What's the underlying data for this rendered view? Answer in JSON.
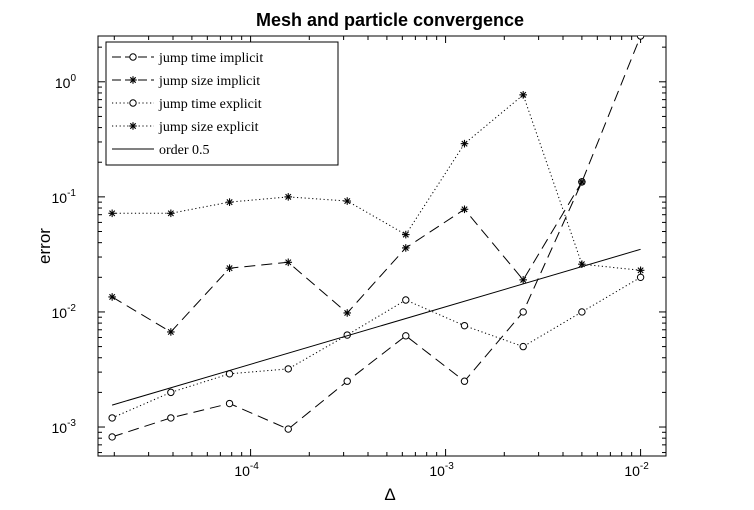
{
  "chart_data": {
    "type": "line",
    "title": "Mesh and particle convergence",
    "xlabel": "Δ",
    "ylabel": "error",
    "xscale": "log",
    "yscale": "log",
    "xlim": [
      1.65e-05,
      0.0135
    ],
    "ylim": [
      0.00056,
      2.5
    ],
    "x_ticks": [
      {
        "value": 0.0001,
        "base": "10",
        "exp": "-4"
      },
      {
        "value": 0.001,
        "base": "10",
        "exp": "-3"
      },
      {
        "value": 0.01,
        "base": "10",
        "exp": "-2"
      }
    ],
    "y_ticks": [
      {
        "value": 0.001,
        "base": "10",
        "exp": "-3"
      },
      {
        "value": 0.01,
        "base": "10",
        "exp": "-2"
      },
      {
        "value": 0.1,
        "base": "10",
        "exp": "-1"
      },
      {
        "value": 1,
        "base": "10",
        "exp": "0"
      }
    ],
    "legend_position": "top-left",
    "series": [
      {
        "name": "jump time implicit",
        "line": "dashed",
        "marker": "circle",
        "x": [
          1.95e-05,
          3.9e-05,
          7.8e-05,
          0.000156,
          0.000313,
          0.000625,
          0.00125,
          0.0025,
          0.005,
          0.01
        ],
        "y": [
          0.00082,
          0.0012,
          0.0016,
          0.00096,
          0.0025,
          0.0062,
          0.0025,
          0.01,
          0.135,
          2.5
        ]
      },
      {
        "name": "jump size implicit",
        "line": "dashed",
        "marker": "star",
        "x": [
          1.95e-05,
          3.9e-05,
          7.8e-05,
          0.000156,
          0.000313,
          0.000625,
          0.00125,
          0.0025,
          0.005
        ],
        "y": [
          0.0135,
          0.0067,
          0.024,
          0.027,
          0.0098,
          0.036,
          0.078,
          0.019,
          0.135
        ]
      },
      {
        "name": "jump time explicit",
        "line": "dotted",
        "marker": "circle",
        "x": [
          1.95e-05,
          3.9e-05,
          7.8e-05,
          0.000156,
          0.000313,
          0.000625,
          0.00125,
          0.0025,
          0.005,
          0.01
        ],
        "y": [
          0.0012,
          0.002,
          0.0029,
          0.0032,
          0.0063,
          0.0127,
          0.0076,
          0.005,
          0.01,
          0.02
        ]
      },
      {
        "name": "jump size explicit",
        "line": "dotted",
        "marker": "star",
        "x": [
          1.95e-05,
          3.9e-05,
          7.8e-05,
          0.000156,
          0.000313,
          0.000625,
          0.00125,
          0.0025,
          0.005,
          0.01
        ],
        "y": [
          0.072,
          0.072,
          0.09,
          0.1,
          0.092,
          0.047,
          0.29,
          0.77,
          0.026,
          0.023
        ]
      },
      {
        "name": "order 0.5",
        "line": "solid",
        "marker": "none",
        "x": [
          1.95e-05,
          0.01
        ],
        "y": [
          0.00155,
          0.035
        ]
      }
    ]
  }
}
